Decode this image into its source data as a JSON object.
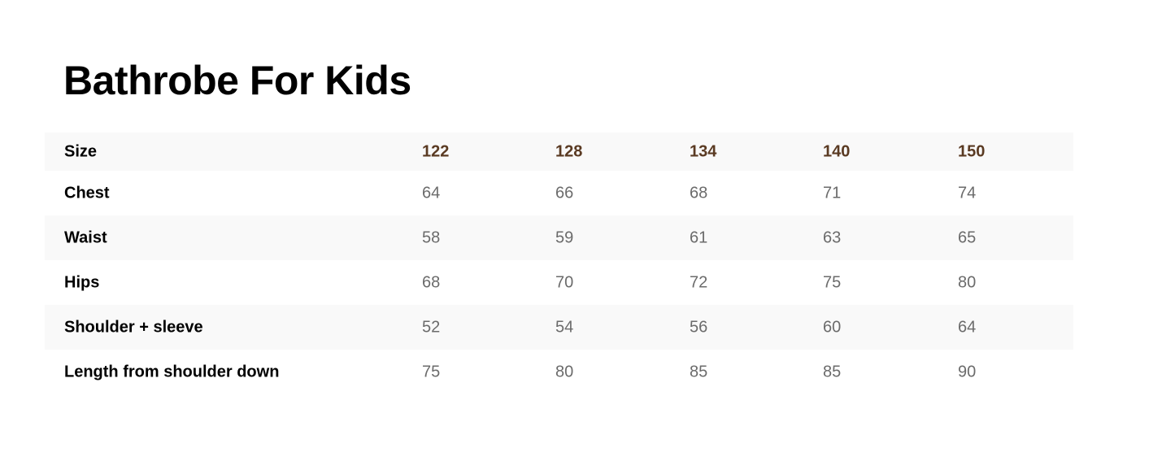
{
  "title": "Bathrobe For Kids",
  "table": {
    "header": {
      "label": "Size",
      "values": [
        "122",
        "128",
        "134",
        "140",
        "150"
      ]
    },
    "rows": [
      {
        "label": "Chest",
        "values": [
          "64",
          "66",
          "68",
          "71",
          "74"
        ]
      },
      {
        "label": "Waist",
        "values": [
          "58",
          "59",
          "61",
          "63",
          "65"
        ]
      },
      {
        "label": "Hips",
        "values": [
          "68",
          "70",
          "72",
          "75",
          "80"
        ]
      },
      {
        "label": "Shoulder + sleeve",
        "values": [
          "52",
          "54",
          "56",
          "60",
          "64"
        ]
      },
      {
        "label": "Length from shoulder down",
        "values": [
          "75",
          "80",
          "85",
          "85",
          "90"
        ]
      }
    ]
  },
  "colors": {
    "header_size_values": "#5a3a22",
    "stripe": "#f9f9f9",
    "values": "#6b6b6b"
  }
}
